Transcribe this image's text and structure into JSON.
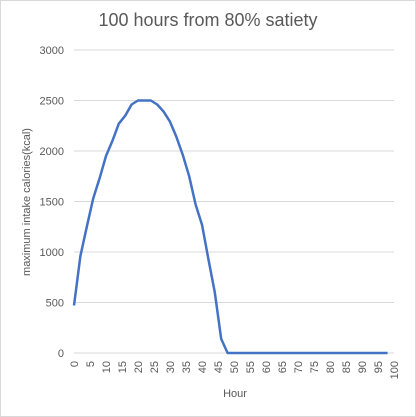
{
  "chart_data": {
    "type": "line",
    "title": "100 hours from 80% satiety",
    "xlabel": "Hour",
    "ylabel": "maximum intake calories(kcal)",
    "xlim": [
      0,
      100
    ],
    "ylim": [
      0,
      3000
    ],
    "grid": true,
    "legend": "none",
    "colors": {
      "series": "#4472c4",
      "grid": "#d9d9d9",
      "text": "#595959"
    },
    "x_ticks": [
      "0",
      "5",
      "10",
      "15",
      "20",
      "25",
      "30",
      "35",
      "40",
      "45",
      "50",
      "55",
      "60",
      "65",
      "70",
      "75",
      "80",
      "85",
      "90",
      "95",
      "100"
    ],
    "y_ticks": [
      "0",
      "500",
      "1000",
      "1500",
      "2000",
      "2500",
      "3000"
    ],
    "series": [
      {
        "x": [
          0,
          2,
          4,
          6,
          8,
          10,
          12,
          14,
          16,
          18,
          20,
          22,
          24,
          26,
          28,
          30,
          32,
          34,
          36,
          38,
          40,
          42,
          44,
          46,
          48,
          50,
          55,
          60,
          65,
          70,
          75,
          80,
          85,
          90,
          95,
          98
        ],
        "y": [
          470,
          960,
          1250,
          1530,
          1730,
          1950,
          2100,
          2270,
          2350,
          2460,
          2500,
          2500,
          2500,
          2460,
          2390,
          2290,
          2140,
          1960,
          1750,
          1470,
          1270,
          930,
          600,
          140,
          0,
          0,
          0,
          0,
          0,
          0,
          0,
          0,
          0,
          0,
          0,
          0
        ]
      }
    ]
  }
}
